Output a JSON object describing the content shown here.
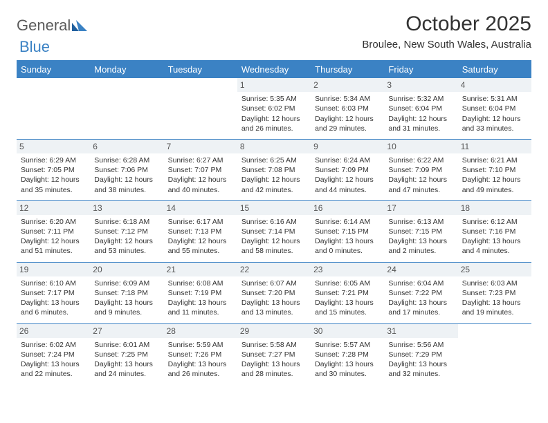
{
  "logo": {
    "word1": "General",
    "word2": "Blue"
  },
  "title": "October 2025",
  "subtitle": "Broulee, New South Wales, Australia",
  "colors": {
    "brand": "#3b82c4",
    "dayband": "#eef2f5",
    "text": "#333333",
    "bg": "#ffffff"
  },
  "dayHeaders": [
    "Sunday",
    "Monday",
    "Tuesday",
    "Wednesday",
    "Thursday",
    "Friday",
    "Saturday"
  ],
  "weeks": [
    [
      {
        "day": "",
        "lines": []
      },
      {
        "day": "",
        "lines": []
      },
      {
        "day": "",
        "lines": []
      },
      {
        "day": "1",
        "lines": [
          "Sunrise: 5:35 AM",
          "Sunset: 6:02 PM",
          "Daylight: 12 hours and 26 minutes."
        ]
      },
      {
        "day": "2",
        "lines": [
          "Sunrise: 5:34 AM",
          "Sunset: 6:03 PM",
          "Daylight: 12 hours and 29 minutes."
        ]
      },
      {
        "day": "3",
        "lines": [
          "Sunrise: 5:32 AM",
          "Sunset: 6:04 PM",
          "Daylight: 12 hours and 31 minutes."
        ]
      },
      {
        "day": "4",
        "lines": [
          "Sunrise: 5:31 AM",
          "Sunset: 6:04 PM",
          "Daylight: 12 hours and 33 minutes."
        ]
      }
    ],
    [
      {
        "day": "5",
        "lines": [
          "Sunrise: 6:29 AM",
          "Sunset: 7:05 PM",
          "Daylight: 12 hours and 35 minutes."
        ]
      },
      {
        "day": "6",
        "lines": [
          "Sunrise: 6:28 AM",
          "Sunset: 7:06 PM",
          "Daylight: 12 hours and 38 minutes."
        ]
      },
      {
        "day": "7",
        "lines": [
          "Sunrise: 6:27 AM",
          "Sunset: 7:07 PM",
          "Daylight: 12 hours and 40 minutes."
        ]
      },
      {
        "day": "8",
        "lines": [
          "Sunrise: 6:25 AM",
          "Sunset: 7:08 PM",
          "Daylight: 12 hours and 42 minutes."
        ]
      },
      {
        "day": "9",
        "lines": [
          "Sunrise: 6:24 AM",
          "Sunset: 7:09 PM",
          "Daylight: 12 hours and 44 minutes."
        ]
      },
      {
        "day": "10",
        "lines": [
          "Sunrise: 6:22 AM",
          "Sunset: 7:09 PM",
          "Daylight: 12 hours and 47 minutes."
        ]
      },
      {
        "day": "11",
        "lines": [
          "Sunrise: 6:21 AM",
          "Sunset: 7:10 PM",
          "Daylight: 12 hours and 49 minutes."
        ]
      }
    ],
    [
      {
        "day": "12",
        "lines": [
          "Sunrise: 6:20 AM",
          "Sunset: 7:11 PM",
          "Daylight: 12 hours and 51 minutes."
        ]
      },
      {
        "day": "13",
        "lines": [
          "Sunrise: 6:18 AM",
          "Sunset: 7:12 PM",
          "Daylight: 12 hours and 53 minutes."
        ]
      },
      {
        "day": "14",
        "lines": [
          "Sunrise: 6:17 AM",
          "Sunset: 7:13 PM",
          "Daylight: 12 hours and 55 minutes."
        ]
      },
      {
        "day": "15",
        "lines": [
          "Sunrise: 6:16 AM",
          "Sunset: 7:14 PM",
          "Daylight: 12 hours and 58 minutes."
        ]
      },
      {
        "day": "16",
        "lines": [
          "Sunrise: 6:14 AM",
          "Sunset: 7:15 PM",
          "Daylight: 13 hours and 0 minutes."
        ]
      },
      {
        "day": "17",
        "lines": [
          "Sunrise: 6:13 AM",
          "Sunset: 7:15 PM",
          "Daylight: 13 hours and 2 minutes."
        ]
      },
      {
        "day": "18",
        "lines": [
          "Sunrise: 6:12 AM",
          "Sunset: 7:16 PM",
          "Daylight: 13 hours and 4 minutes."
        ]
      }
    ],
    [
      {
        "day": "19",
        "lines": [
          "Sunrise: 6:10 AM",
          "Sunset: 7:17 PM",
          "Daylight: 13 hours and 6 minutes."
        ]
      },
      {
        "day": "20",
        "lines": [
          "Sunrise: 6:09 AM",
          "Sunset: 7:18 PM",
          "Daylight: 13 hours and 9 minutes."
        ]
      },
      {
        "day": "21",
        "lines": [
          "Sunrise: 6:08 AM",
          "Sunset: 7:19 PM",
          "Daylight: 13 hours and 11 minutes."
        ]
      },
      {
        "day": "22",
        "lines": [
          "Sunrise: 6:07 AM",
          "Sunset: 7:20 PM",
          "Daylight: 13 hours and 13 minutes."
        ]
      },
      {
        "day": "23",
        "lines": [
          "Sunrise: 6:05 AM",
          "Sunset: 7:21 PM",
          "Daylight: 13 hours and 15 minutes."
        ]
      },
      {
        "day": "24",
        "lines": [
          "Sunrise: 6:04 AM",
          "Sunset: 7:22 PM",
          "Daylight: 13 hours and 17 minutes."
        ]
      },
      {
        "day": "25",
        "lines": [
          "Sunrise: 6:03 AM",
          "Sunset: 7:23 PM",
          "Daylight: 13 hours and 19 minutes."
        ]
      }
    ],
    [
      {
        "day": "26",
        "lines": [
          "Sunrise: 6:02 AM",
          "Sunset: 7:24 PM",
          "Daylight: 13 hours and 22 minutes."
        ]
      },
      {
        "day": "27",
        "lines": [
          "Sunrise: 6:01 AM",
          "Sunset: 7:25 PM",
          "Daylight: 13 hours and 24 minutes."
        ]
      },
      {
        "day": "28",
        "lines": [
          "Sunrise: 5:59 AM",
          "Sunset: 7:26 PM",
          "Daylight: 13 hours and 26 minutes."
        ]
      },
      {
        "day": "29",
        "lines": [
          "Sunrise: 5:58 AM",
          "Sunset: 7:27 PM",
          "Daylight: 13 hours and 28 minutes."
        ]
      },
      {
        "day": "30",
        "lines": [
          "Sunrise: 5:57 AM",
          "Sunset: 7:28 PM",
          "Daylight: 13 hours and 30 minutes."
        ]
      },
      {
        "day": "31",
        "lines": [
          "Sunrise: 5:56 AM",
          "Sunset: 7:29 PM",
          "Daylight: 13 hours and 32 minutes."
        ]
      },
      {
        "day": "",
        "lines": []
      }
    ]
  ]
}
